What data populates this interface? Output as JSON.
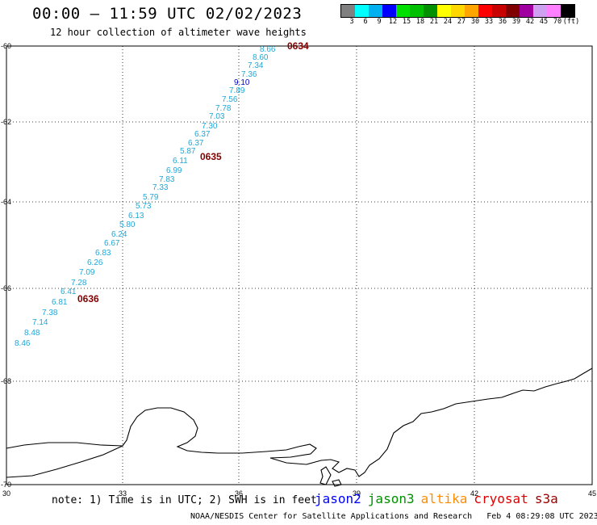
{
  "header": {
    "title": "00:00 – 11:59 UTC 02/02/2023",
    "subtitle": "12 hour collection of altimeter wave heights"
  },
  "legend": {
    "colors": [
      "#808080",
      "#00ffff",
      "#00b0f0",
      "#0000ff",
      "#00e000",
      "#00c000",
      "#009000",
      "#ffff00",
      "#ffd700",
      "#ffa500",
      "#ff0000",
      "#c80000",
      "#800000",
      "#a000a0",
      "#d0a0f0",
      "#ff80ff",
      "#000000"
    ],
    "labels": [
      "3",
      "6",
      "9",
      "12",
      "15",
      "18",
      "21",
      "24",
      "27",
      "30",
      "33",
      "36",
      "39",
      "42",
      "45",
      "70",
      "(ft)"
    ]
  },
  "axes": {
    "lat_labels": [
      "-60",
      "-62",
      "-64",
      "-66",
      "-68",
      "-70"
    ],
    "lon_labels": [
      "30",
      "33",
      "36",
      "39",
      "42",
      "45"
    ]
  },
  "passes": [
    {
      "id": "0634",
      "color": "#800000"
    },
    {
      "id": "0635",
      "color": "#800000"
    },
    {
      "id": "0636",
      "color": "#800000"
    }
  ],
  "wave_heights": [
    {
      "v": "8.66",
      "c": "#1fa8d8"
    },
    {
      "v": "8.60",
      "c": "#1fa8d8"
    },
    {
      "v": "7.34",
      "c": "#1fa8d8"
    },
    {
      "v": "7.36",
      "c": "#1fa8d8"
    },
    {
      "v": "9.10",
      "c": "#0000cc"
    },
    {
      "v": "7.89",
      "c": "#1fa8d8"
    },
    {
      "v": "7.56",
      "c": "#1fa8d8"
    },
    {
      "v": "7.78",
      "c": "#1fa8d8"
    },
    {
      "v": "7.03",
      "c": "#1fa8d8"
    },
    {
      "v": "7.30",
      "c": "#1fa8d8"
    },
    {
      "v": "6.37",
      "c": "#1fa8d8"
    },
    {
      "v": "6.37",
      "c": "#1fa8d8"
    },
    {
      "v": "5.87",
      "c": "#1fa8d8"
    },
    {
      "v": "6.11",
      "c": "#1fa8d8"
    },
    {
      "v": "6.99",
      "c": "#1fa8d8"
    },
    {
      "v": "7.83",
      "c": "#1fa8d8"
    },
    {
      "v": "7.33",
      "c": "#1fa8d8"
    },
    {
      "v": "5.79",
      "c": "#1fa8d8"
    },
    {
      "v": "5.73",
      "c": "#1fa8d8"
    },
    {
      "v": "6.13",
      "c": "#1fa8d8"
    },
    {
      "v": "5.80",
      "c": "#1fa8d8"
    },
    {
      "v": "6.24",
      "c": "#1fa8d8"
    },
    {
      "v": "6.67",
      "c": "#1fa8d8"
    },
    {
      "v": "6.83",
      "c": "#1fa8d8"
    },
    {
      "v": "6.26",
      "c": "#1fa8d8"
    },
    {
      "v": "7.09",
      "c": "#1fa8d8"
    },
    {
      "v": "7.28",
      "c": "#1fa8d8"
    },
    {
      "v": "6.41",
      "c": "#1fa8d8"
    },
    {
      "v": "6.81",
      "c": "#1fa8d8"
    },
    {
      "v": "7.38",
      "c": "#1fa8d8"
    },
    {
      "v": "7.14",
      "c": "#1fa8d8"
    },
    {
      "v": "8.48",
      "c": "#1fa8d8"
    },
    {
      "v": "8.46",
      "c": "#1fa8d8"
    }
  ],
  "footer": {
    "note": "note: 1) Time is in UTC; 2) SWH is in feet",
    "satellites": [
      {
        "name": "jason2",
        "color": "#0000ff"
      },
      {
        "name": "jason3",
        "color": "#009000"
      },
      {
        "name": "altika",
        "color": "#ff8c00"
      },
      {
        "name": "cryosat",
        "color": "#e00000"
      },
      {
        "name": "s3a",
        "color": "#a00000"
      }
    ],
    "credit": "NOAA/NESDIS Center for Satellite Applications and Research",
    "timestamp": "Feb  4 08:29:08 UTC 2023"
  }
}
